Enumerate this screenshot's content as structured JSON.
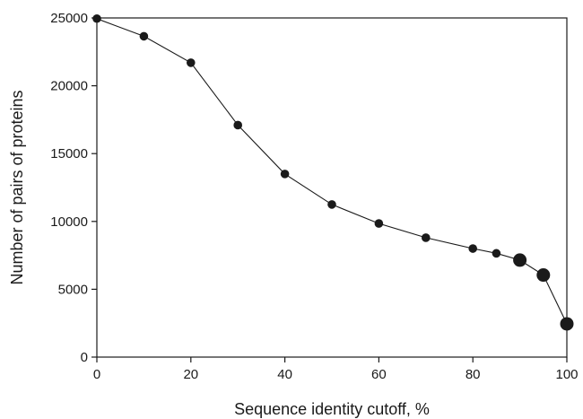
{
  "chart_data": {
    "type": "scatter",
    "title": "",
    "xlabel": "Sequence identity cutoff, %",
    "ylabel": "Number of pairs of proteins",
    "xlim": [
      0,
      100
    ],
    "ylim": [
      0,
      25000
    ],
    "xticks": [
      0,
      20,
      40,
      60,
      80,
      100
    ],
    "yticks": [
      0,
      5000,
      10000,
      15000,
      20000,
      25000
    ],
    "grid": false,
    "legend": "none",
    "series": [
      {
        "x": [
          0,
          10,
          20,
          30,
          40,
          50,
          60,
          70,
          80,
          85,
          90,
          95,
          100
        ],
        "y": [
          24950,
          23650,
          21700,
          17100,
          13500,
          11250,
          9850,
          8800,
          8000,
          7650,
          7150,
          6050,
          2450
        ],
        "marker_size": [
          "small",
          "small",
          "small",
          "small",
          "small",
          "small",
          "small",
          "small",
          "small",
          "small",
          "large",
          "large",
          "large"
        ],
        "color": "#1a1a1a"
      }
    ]
  }
}
